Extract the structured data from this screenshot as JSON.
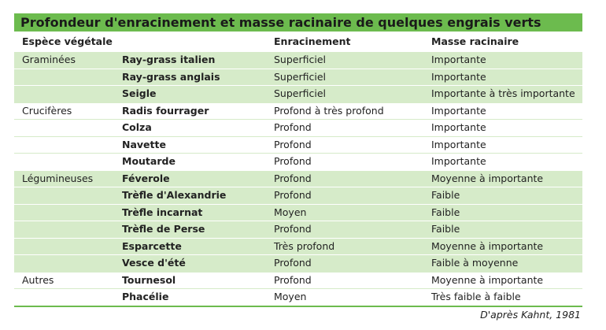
{
  "title": "Profondeur d'enracinement et masse racinaire de quelques engrais verts",
  "table": {
    "header": [
      "Espèce végétale",
      "Enracinement",
      "Masse racinaire"
    ],
    "groups": [
      {
        "name": "Graminées",
        "rows": [
          [
            "Ray-grass italien",
            "Superficiel",
            "Importante"
          ],
          [
            "Ray-grass anglais",
            "Superficiel",
            "Importante"
          ],
          [
            "Seigle",
            "Superficiel",
            "Importante à très importante"
          ]
        ]
      },
      {
        "name": "Crucifères",
        "rows": [
          [
            "Radis fourrager",
            "Profond à très profond",
            "Importante"
          ],
          [
            "Colza",
            "Profond",
            "Importante"
          ],
          [
            "Navette",
            "Profond",
            "Importante"
          ],
          [
            "Moutarde",
            "Profond",
            "Importante"
          ]
        ]
      },
      {
        "name": "Légumineuses",
        "rows": [
          [
            "Féverole",
            "Profond",
            "Moyenne à importante"
          ],
          [
            "Trèfle d'Alexandrie",
            "Profond",
            "Faible"
          ],
          [
            "Trèfle incarnat",
            "Moyen",
            "Faible"
          ],
          [
            "Trèfle de Perse",
            "Profond",
            "Faible"
          ],
          [
            "Esparcette",
            "Très profond",
            "Moyenne à importante"
          ],
          [
            "Vesce d'été",
            "Profond",
            "Faible à moyenne"
          ]
        ]
      },
      {
        "name": "Autres",
        "rows": [
          [
            "Tournesol",
            "Profond",
            "Moyenne à importante"
          ],
          [
            "Phacélie",
            "Moyen",
            "Très faible à faible"
          ]
        ]
      }
    ]
  },
  "source": "D'après Kahnt, 1981"
}
